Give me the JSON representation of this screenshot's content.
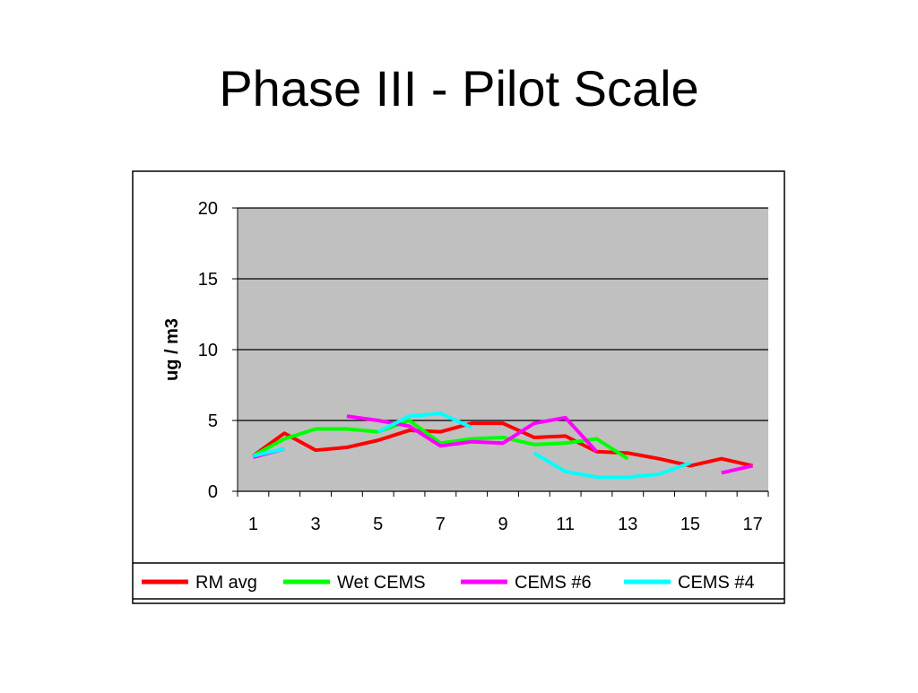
{
  "chart_data": {
    "type": "line",
    "title": "Phase III - Pilot Scale",
    "y_label": "ug / m3",
    "categories": [
      "1",
      null,
      "3",
      null,
      "5",
      null,
      "7",
      null,
      "9",
      null,
      "11",
      null,
      "13",
      null,
      "15",
      null,
      "17"
    ],
    "ylim": [
      0,
      20
    ],
    "yticks": [
      0,
      5,
      10,
      15,
      20
    ],
    "grid": true,
    "legend": "bottom",
    "series": [
      {
        "name": "RM avg",
        "color": "#ff0000",
        "values": [
          2.5,
          4.1,
          2.9,
          3.1,
          3.6,
          4.3,
          4.2,
          4.8,
          4.8,
          3.8,
          3.9,
          2.8,
          2.7,
          2.3,
          1.8,
          2.3,
          1.8
        ]
      },
      {
        "name": "Wet CEMS",
        "color": "#00ff00",
        "values": [
          2.5,
          3.7,
          4.4,
          4.4,
          4.2,
          5.0,
          3.4,
          3.7,
          3.8,
          3.3,
          3.4,
          3.7,
          2.3,
          null,
          null,
          null,
          null
        ]
      },
      {
        "name": "CEMS #6",
        "color": "#ff00ff",
        "values": [
          2.4,
          3.0,
          null,
          5.3,
          5.0,
          4.6,
          3.2,
          3.5,
          3.4,
          4.8,
          5.2,
          2.8,
          null,
          null,
          null,
          1.3,
          1.8
        ]
      },
      {
        "name": "CEMS #4",
        "color": "#00ffff",
        "values": [
          2.5,
          3.0,
          null,
          null,
          4.2,
          5.3,
          5.5,
          4.5,
          null,
          2.7,
          1.4,
          1.0,
          1.0,
          1.2,
          2.0,
          null,
          null
        ]
      }
    ]
  }
}
